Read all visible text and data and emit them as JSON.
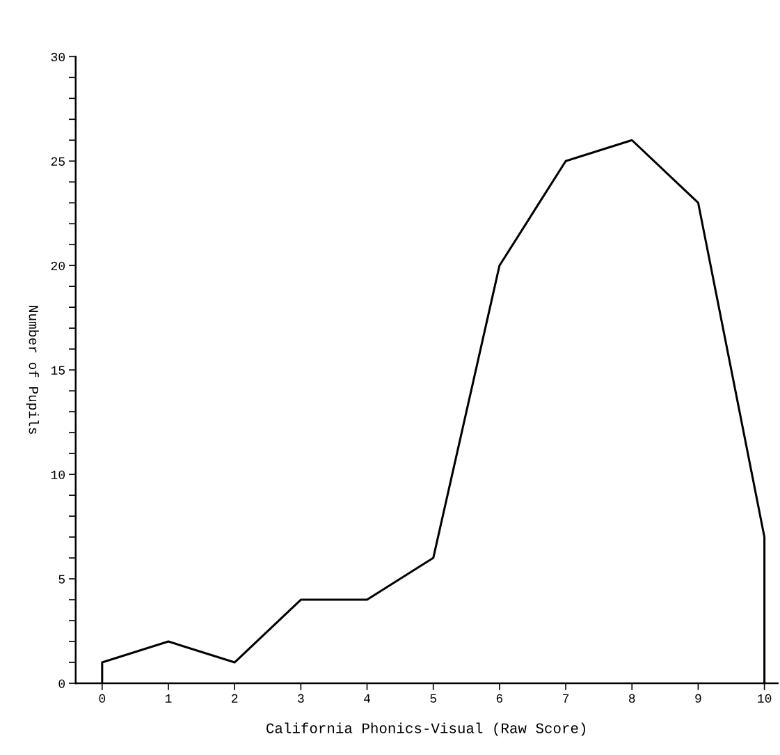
{
  "chart_data": {
    "type": "line",
    "xlabel": "California Phonics-Visual (Raw Score)",
    "ylabel": "Number of Pupils",
    "x": [
      0,
      0,
      1,
      2,
      3,
      4,
      5,
      6,
      7,
      8,
      9,
      10,
      10
    ],
    "series": [
      {
        "color": "#000000",
        "values": [
          0,
          1,
          2,
          1,
          4,
          4,
          6,
          20,
          25,
          26,
          23,
          7,
          0
        ]
      }
    ],
    "xlim": [
      -0.4,
      10.2
    ],
    "xticks": [
      0,
      1,
      2,
      3,
      4,
      5,
      6,
      7,
      8,
      9,
      10
    ],
    "ylim": [
      0,
      30
    ],
    "yticks": [
      0,
      {
        "value": 1,
        "label": null
      },
      {
        "value": 2,
        "label": null
      },
      {
        "value": 3,
        "label": null
      },
      {
        "value": 4,
        "label": null
      },
      5,
      {
        "value": 6,
        "label": null
      },
      {
        "value": 7,
        "label": null
      },
      {
        "value": 8,
        "label": null
      },
      {
        "value": 9,
        "label": null
      },
      10,
      {
        "value": 11,
        "label": null
      },
      {
        "value": 12,
        "label": null
      },
      {
        "value": 13,
        "label": null
      },
      {
        "value": 14,
        "label": null
      },
      15,
      {
        "value": 16,
        "label": null
      },
      {
        "value": 17,
        "label": null
      },
      {
        "value": 18,
        "label": null
      },
      {
        "value": 19,
        "label": null
      },
      20,
      {
        "value": 21,
        "label": null
      },
      {
        "value": 22,
        "label": null
      },
      {
        "value": 23,
        "label": null
      },
      {
        "value": 24,
        "label": null
      },
      25,
      {
        "value": 26,
        "label": null
      },
      {
        "value": 27,
        "label": null
      },
      {
        "value": 28,
        "label": null
      },
      {
        "value": 29,
        "label": null
      },
      30
    ],
    "grid": false,
    "marker": "none",
    "line_style": "solid"
  }
}
